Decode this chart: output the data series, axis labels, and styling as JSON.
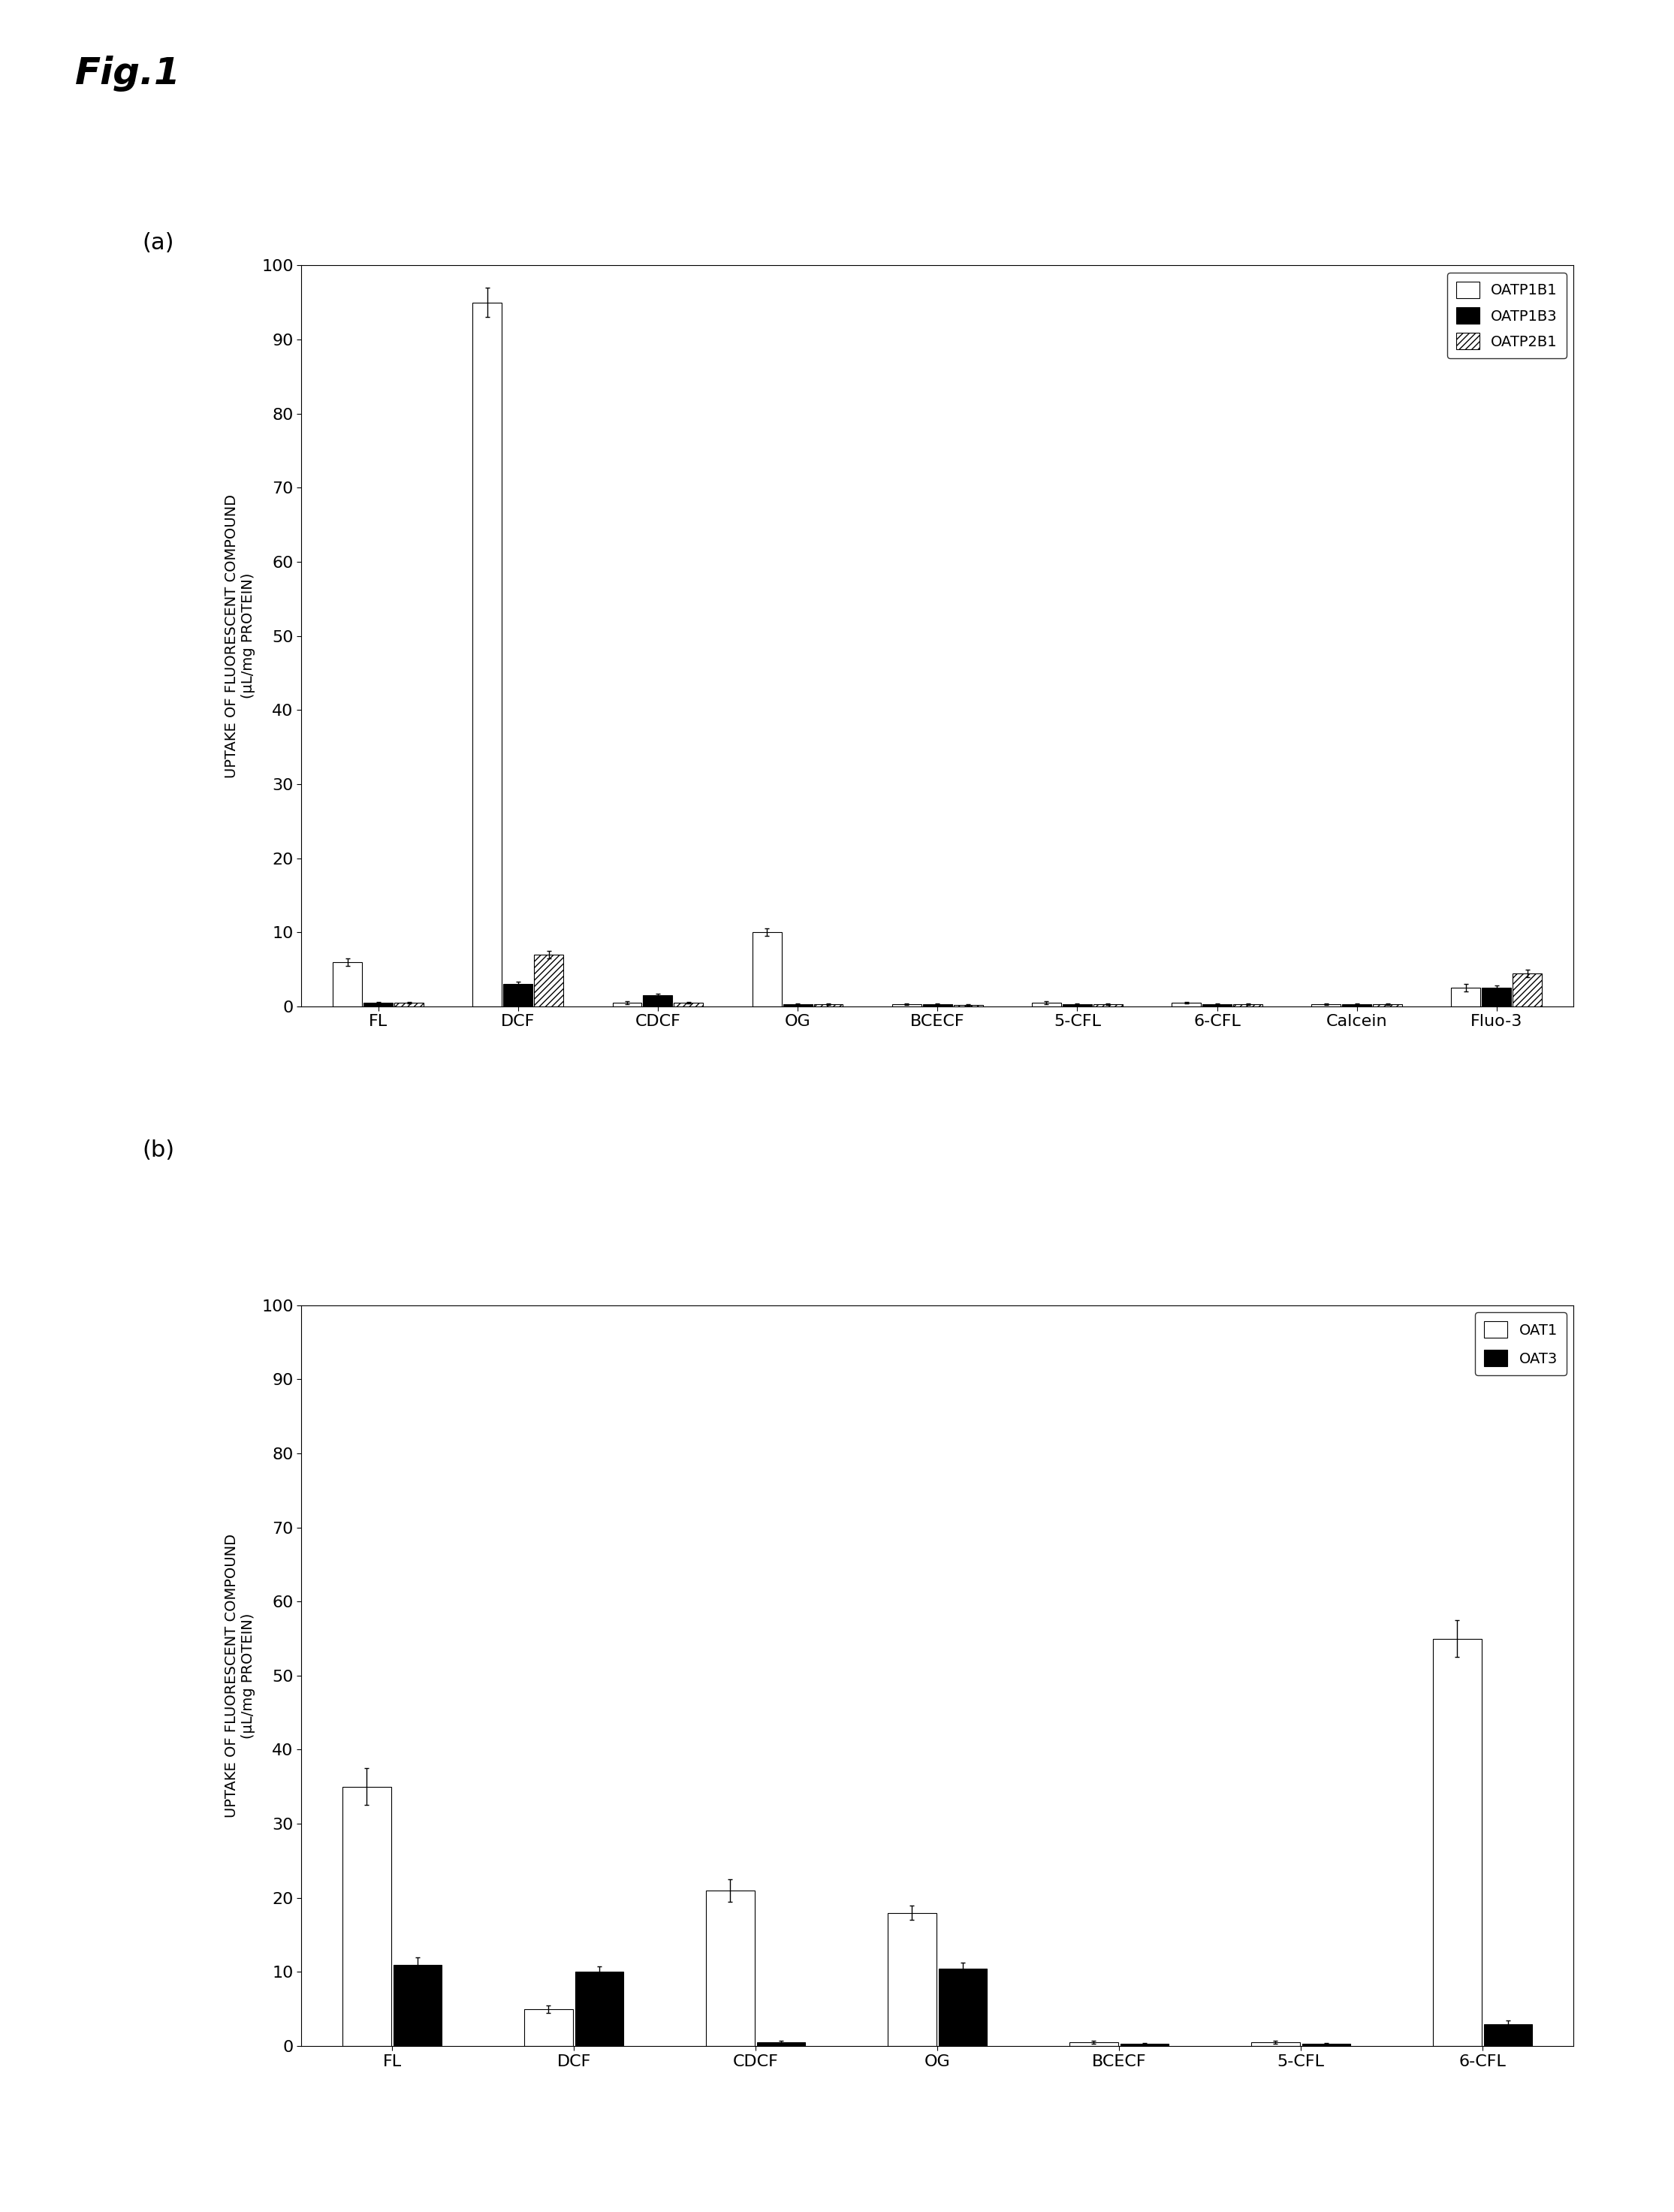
{
  "panel_a": {
    "categories": [
      "FL",
      "DCF",
      "CDCF",
      "OG",
      "BCECF",
      "5-CFL",
      "6-CFL",
      "Calcein",
      "Fluo-3"
    ],
    "series": {
      "OATP1B1": [
        6.0,
        95.0,
        0.5,
        10.0,
        0.3,
        0.5,
        0.5,
        0.3,
        2.5
      ],
      "OATP1B3": [
        0.5,
        3.0,
        1.5,
        0.3,
        0.3,
        0.3,
        0.3,
        0.3,
        2.5
      ],
      "OATP2B1": [
        0.5,
        7.0,
        0.5,
        0.3,
        0.2,
        0.3,
        0.3,
        0.3,
        4.5
      ]
    },
    "errors": {
      "OATP1B1": [
        0.5,
        2.0,
        0.2,
        0.5,
        0.1,
        0.2,
        0.1,
        0.1,
        0.5
      ],
      "OATP1B3": [
        0.1,
        0.3,
        0.2,
        0.1,
        0.1,
        0.1,
        0.1,
        0.1,
        0.3
      ],
      "OATP2B1": [
        0.1,
        0.5,
        0.1,
        0.1,
        0.1,
        0.1,
        0.1,
        0.1,
        0.5
      ]
    },
    "ylim": [
      0,
      100
    ],
    "yticks": [
      0,
      10,
      20,
      30,
      40,
      50,
      60,
      70,
      80,
      90,
      100
    ],
    "ylabel_line1": "UPTAKE OF FLUORESCENT COMPOUND",
    "ylabel_line2": "(μL/mg PROTEIN)",
    "legend_labels": [
      "OATP1B1",
      "OATP1B3",
      "OATP2B1"
    ],
    "bar_width": 0.22
  },
  "panel_b": {
    "categories": [
      "FL",
      "DCF",
      "CDCF",
      "OG",
      "BCECF",
      "5-CFL",
      "6-CFL"
    ],
    "series": {
      "OAT1": [
        35.0,
        5.0,
        21.0,
        18.0,
        0.5,
        0.5,
        55.0
      ],
      "OAT3": [
        11.0,
        10.0,
        0.5,
        10.5,
        0.3,
        0.3,
        3.0
      ]
    },
    "errors": {
      "OAT1": [
        2.5,
        0.5,
        1.5,
        1.0,
        0.2,
        0.2,
        2.5
      ],
      "OAT3": [
        1.0,
        0.8,
        0.2,
        0.8,
        0.1,
        0.1,
        0.5
      ]
    },
    "ylim": [
      0,
      100
    ],
    "yticks": [
      0,
      10,
      20,
      30,
      40,
      50,
      60,
      70,
      80,
      90,
      100
    ],
    "ylabel_line1": "UPTAKE OF FLUORESCENT COMPOUND",
    "ylabel_line2": "(μL/mg PROTEIN)",
    "legend_labels": [
      "OAT1",
      "OAT3"
    ],
    "bar_width": 0.28
  },
  "fig_title": "Fig.1",
  "panel_a_label": "(a)",
  "panel_b_label": "(b)",
  "background_color": "#ffffff",
  "title_fontsize": 36,
  "panel_label_fontsize": 22,
  "tick_fontsize": 16,
  "ylabel_fontsize": 14,
  "legend_fontsize": 14
}
